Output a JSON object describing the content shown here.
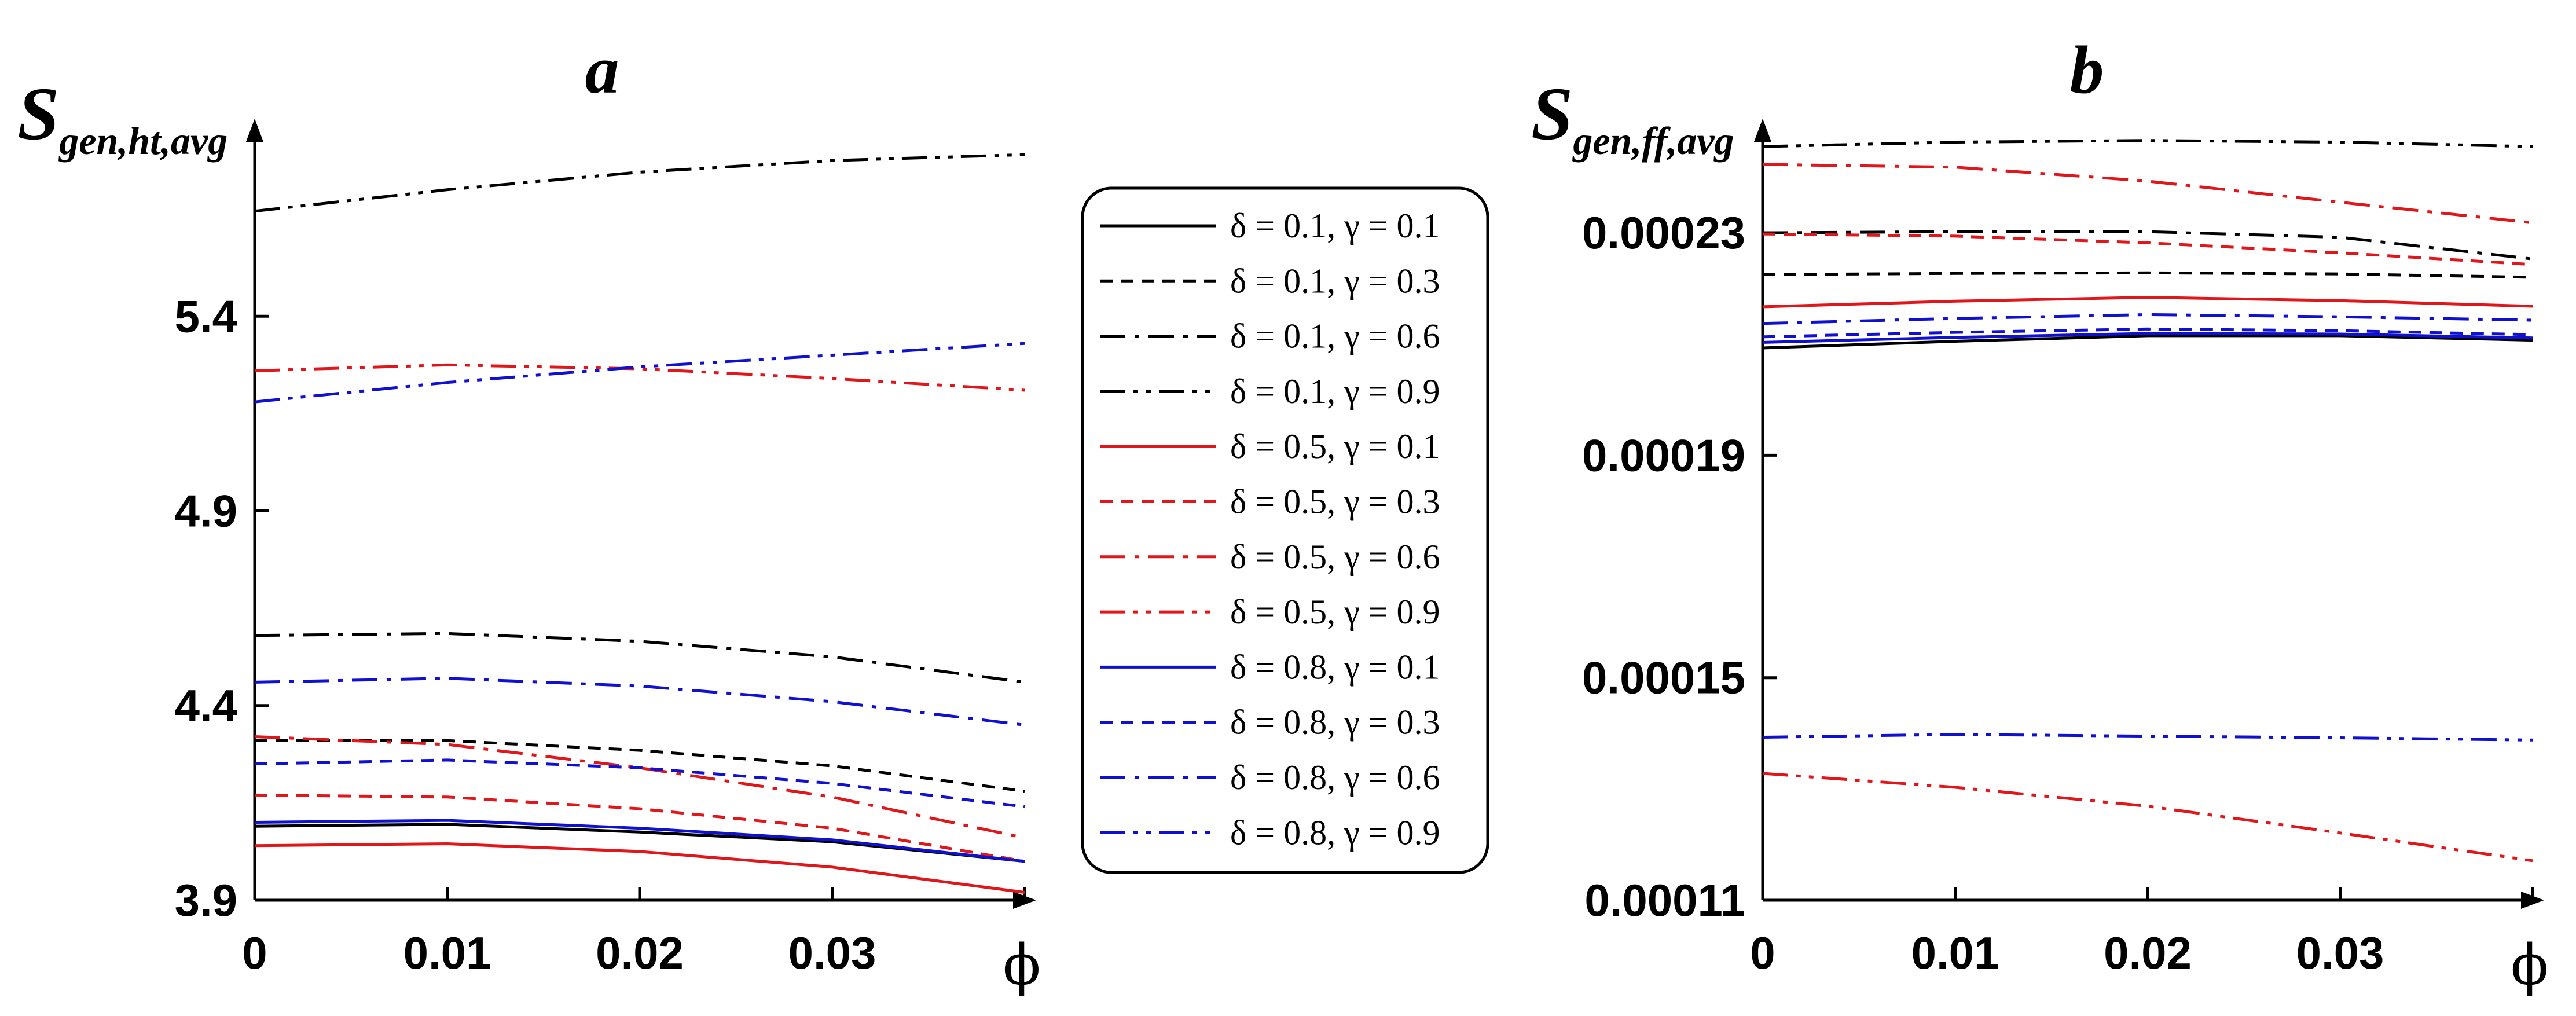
{
  "chart_data": [
    {
      "type": "line",
      "title": "a",
      "ylabel": {
        "main": "S",
        "sub": "gen,ht,avg"
      },
      "xlabel": "ϕ",
      "x": [
        0,
        0.01,
        0.02,
        0.03,
        0.04
      ],
      "xtick_labels": [
        "0",
        "0.01",
        "0.02",
        "0.03"
      ],
      "xlim": [
        0,
        0.04
      ],
      "ylim": [
        3.9,
        5.9
      ],
      "yticks": [
        3.9,
        4.4,
        4.9,
        5.4
      ],
      "ytick_labels": [
        "3.9",
        "4.4",
        "4.9",
        "5.4"
      ],
      "grid": false,
      "series": [
        {
          "name": "δ = 0.1, γ = 0.1",
          "values": [
            4.09,
            4.095,
            4.075,
            4.05,
            4.0
          ]
        },
        {
          "name": "δ = 0.1, γ = 0.3",
          "values": [
            4.31,
            4.31,
            4.285,
            4.245,
            4.18
          ]
        },
        {
          "name": "δ = 0.1, γ = 0.6",
          "values": [
            4.58,
            4.585,
            4.565,
            4.525,
            4.46
          ]
        },
        {
          "name": "δ = 0.1, γ = 0.9",
          "values": [
            5.67,
            5.725,
            5.77,
            5.8,
            5.815
          ]
        },
        {
          "name": "δ = 0.5, γ = 0.1",
          "values": [
            4.04,
            4.045,
            4.025,
            3.985,
            3.92
          ]
        },
        {
          "name": "δ = 0.5, γ = 0.3",
          "values": [
            4.17,
            4.165,
            4.135,
            4.085,
            4.0
          ]
        },
        {
          "name": "δ = 0.5, γ = 0.6",
          "values": [
            4.32,
            4.3,
            4.24,
            4.165,
            4.06
          ]
        },
        {
          "name": "δ = 0.5, γ = 0.9",
          "values": [
            5.26,
            5.275,
            5.265,
            5.24,
            5.21
          ]
        },
        {
          "name": "δ = 0.8, γ = 0.1",
          "values": [
            4.1,
            4.105,
            4.085,
            4.055,
            4.0
          ]
        },
        {
          "name": "δ = 0.8, γ = 0.3",
          "values": [
            4.25,
            4.26,
            4.24,
            4.2,
            4.14
          ]
        },
        {
          "name": "δ = 0.8, γ = 0.6",
          "values": [
            4.46,
            4.47,
            4.45,
            4.41,
            4.35
          ]
        },
        {
          "name": "δ = 0.8, γ = 0.9",
          "values": [
            5.18,
            5.23,
            5.27,
            5.3,
            5.33
          ]
        }
      ]
    },
    {
      "type": "line",
      "title": "b",
      "ylabel": {
        "main": "S",
        "sub": "gen,ff,avg"
      },
      "xlabel": "ϕ",
      "x": [
        0,
        0.01,
        0.02,
        0.03,
        0.04
      ],
      "xtick_labels": [
        "0",
        "0.01",
        "0.02",
        "0.03"
      ],
      "xlim": [
        0,
        0.04
      ],
      "ylim": [
        0.00011,
        0.00025
      ],
      "yticks": [
        0.00011,
        0.00015,
        0.00019,
        0.00023
      ],
      "ytick_labels": [
        "0.00011",
        "0.00015",
        "0.00019",
        "0.00023"
      ],
      "grid": false,
      "series": [
        {
          "name": "δ = 0.1, γ = 0.1",
          "values": [
            0.0002093,
            0.0002105,
            0.0002115,
            0.0002115,
            0.0002107
          ]
        },
        {
          "name": "δ = 0.1, γ = 0.3",
          "values": [
            0.0002225,
            0.0002227,
            0.0002228,
            0.0002226,
            0.000222
          ]
        },
        {
          "name": "δ = 0.1, γ = 0.6",
          "values": [
            0.00023,
            0.0002302,
            0.0002302,
            0.0002292,
            0.0002253
          ]
        },
        {
          "name": "δ = 0.1, γ = 0.9",
          "values": [
            0.0002455,
            0.0002463,
            0.0002466,
            0.0002463,
            0.0002455
          ]
        },
        {
          "name": "δ = 0.5, γ = 0.1",
          "values": [
            0.0002167,
            0.0002177,
            0.0002184,
            0.0002178,
            0.0002168
          ]
        },
        {
          "name": "δ = 0.5, γ = 0.3",
          "values": [
            0.0002298,
            0.0002294,
            0.0002282,
            0.0002264,
            0.0002243
          ]
        },
        {
          "name": "δ = 0.5, γ = 0.6",
          "values": [
            0.0002423,
            0.0002418,
            0.0002393,
            0.0002355,
            0.0002318
          ]
        },
        {
          "name": "δ = 0.5, γ = 0.9",
          "values": [
            0.0001328,
            0.0001303,
            0.0001269,
            0.0001221,
            0.0001171
          ]
        },
        {
          "name": "δ = 0.8, γ = 0.1",
          "values": [
            0.0002103,
            0.0002112,
            0.0002119,
            0.0002118,
            0.0002111
          ]
        },
        {
          "name": "δ = 0.8, γ = 0.3",
          "values": [
            0.0002113,
            0.0002121,
            0.0002127,
            0.0002124,
            0.0002117
          ]
        },
        {
          "name": "δ = 0.8, γ = 0.6",
          "values": [
            0.0002137,
            0.0002146,
            0.0002153,
            0.0002149,
            0.0002143
          ]
        },
        {
          "name": "δ = 0.8, γ = 0.9",
          "values": [
            0.0001393,
            0.0001398,
            0.0001395,
            0.0001392,
            0.0001388
          ]
        }
      ]
    }
  ],
  "legend": {
    "position": "between-panels",
    "styles": [
      {
        "color": "#000000",
        "dash": "solid"
      },
      {
        "color": "#000000",
        "dash": "dash"
      },
      {
        "color": "#000000",
        "dash": "dashdot"
      },
      {
        "color": "#000000",
        "dash": "dashdotdot"
      },
      {
        "color": "#e0161b",
        "dash": "solid"
      },
      {
        "color": "#e0161b",
        "dash": "dash"
      },
      {
        "color": "#e0161b",
        "dash": "dashdot"
      },
      {
        "color": "#e0161b",
        "dash": "dashdotdot"
      },
      {
        "color": "#1010d0",
        "dash": "solid"
      },
      {
        "color": "#1010d0",
        "dash": "dash"
      },
      {
        "color": "#1010d0",
        "dash": "dashdot"
      },
      {
        "color": "#1010d0",
        "dash": "dashdotdot"
      }
    ]
  }
}
